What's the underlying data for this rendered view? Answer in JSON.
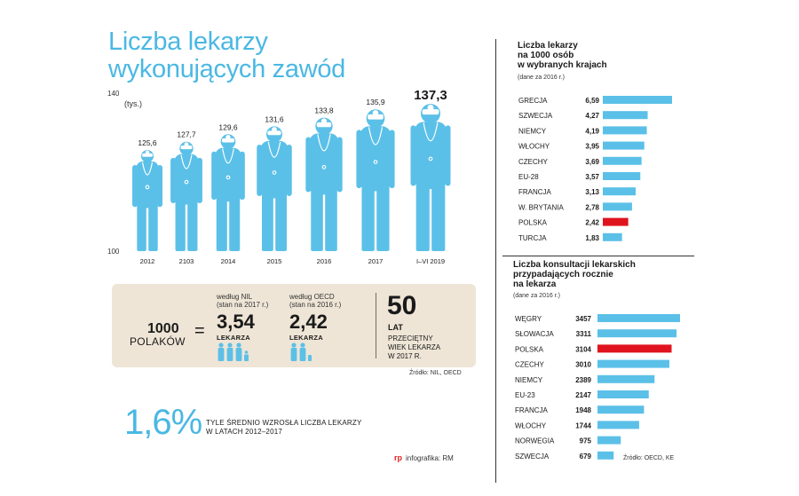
{
  "title_line1": "Liczba lekarzy",
  "title_line2": "wykonujących zawód",
  "chart_data": [
    {
      "type": "bar",
      "title": "Liczba lekarzy wykonujących zawód",
      "ylabel": "(tys.)",
      "ylim": [
        100,
        140
      ],
      "y_ticks": [
        "140",
        "100"
      ],
      "categories": [
        "2012",
        "2103",
        "2014",
        "2015",
        "2016",
        "2017",
        "I–VI 2019"
      ],
      "values": [
        125.6,
        127.7,
        129.6,
        131.6,
        133.8,
        135.9,
        137.3
      ],
      "value_labels": [
        "125,6",
        "127,7",
        "129,6",
        "131,6",
        "133,8",
        "135,9",
        "137,3"
      ],
      "color": "#5bc0e8"
    },
    {
      "type": "bar",
      "orientation": "horizontal",
      "title": "Liczba lekarzy na 1000 osób w wybranych krajach",
      "note": "(dane za 2016 r.)",
      "categories": [
        "GRECJA",
        "SZWECJA",
        "NIEMCY",
        "WŁOCHY",
        "CZECHY",
        "EU-28",
        "FRANCJA",
        "W. BRYTANIA",
        "POLSKA",
        "TURCJA"
      ],
      "values": [
        6.59,
        4.27,
        4.19,
        3.95,
        3.69,
        3.57,
        3.13,
        2.78,
        2.42,
        1.83
      ],
      "value_labels": [
        "6,59",
        "4,27",
        "4,19",
        "3,95",
        "3,69",
        "3,57",
        "3,13",
        "2,78",
        "2,42",
        "1,83"
      ],
      "highlight": "POLSKA"
    },
    {
      "type": "bar",
      "orientation": "horizontal",
      "title": "Liczba konsultacji lekarskich przypadających rocznie na lekarza",
      "note": "(dane za 2016 r.)",
      "categories": [
        "WĘGRY",
        "SŁOWACJA",
        "POLSKA",
        "CZECHY",
        "NIEMCY",
        "EU-23",
        "FRANCJA",
        "WŁOCHY",
        "NORWEGIA",
        "SZWECJA"
      ],
      "values": [
        3457,
        3311,
        3104,
        3010,
        2389,
        2147,
        1948,
        1744,
        975,
        679
      ],
      "value_labels": [
        "3457",
        "3311",
        "3104",
        "3010",
        "2389",
        "2147",
        "1948",
        "1744",
        "975",
        "679"
      ],
      "highlight": "POLSKA"
    }
  ],
  "colors": {
    "bar": "#5bc0e8",
    "highlight": "#e0141e",
    "accent": "#4ab8e3",
    "panel": "#eee5d6"
  },
  "right1": {
    "title_l1": "Liczba lekarzy",
    "title_l2": "na 1000 osób",
    "title_l3": "w wybranych krajach",
    "note": "(dane za 2016 r.)"
  },
  "right2": {
    "title_l1": "Liczba konsultacji lekarskich",
    "title_l2": "przypadających rocznie",
    "title_l3": "na lekarza",
    "note": "(dane za 2016 r.)",
    "source": "Źródło: OECD, KE"
  },
  "eq": {
    "n": "1000",
    "polakow": "POLAKÓW",
    "equals": "=",
    "nil_l1": "według NIL",
    "nil_l2": "(stan na 2017 r.)",
    "nil_value": "3,54",
    "nil_unit": "LEKARZA",
    "oecd_l1": "według OECD",
    "oecd_l2": "(stan na 2016 r.)",
    "oecd_value": "2,42",
    "oecd_unit": "LEKARZA",
    "age_value": "50",
    "age_unit": "LAT",
    "age_l1": "PRZECIĘTNY",
    "age_l2": "WIEK LEKARZA",
    "age_l3": "W 2017 R."
  },
  "source_main": "Źródło: NIL, OECD",
  "growth": {
    "value": "1,6%",
    "desc_l1": "TYLE ŚREDNIO WZROSŁA LICZBA LEKARZY",
    "desc_l2": "W LATACH 2012–2017"
  },
  "credit_logo": "rp",
  "credit": "infografika: RM"
}
